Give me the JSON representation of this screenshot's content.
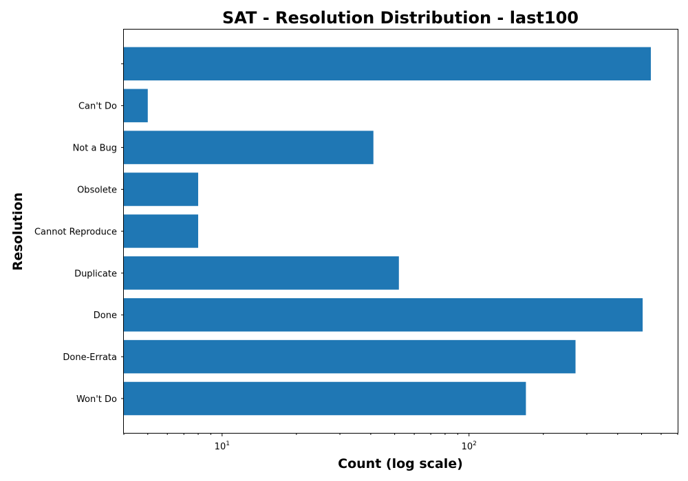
{
  "chart_data": {
    "type": "bar",
    "orientation": "horizontal",
    "title": "SAT - Resolution Distribution - last100",
    "xlabel": "Count (log scale)",
    "ylabel": "Resolution",
    "x_scale": "log",
    "xlim": [
      4,
      700
    ],
    "x_ticks": [
      {
        "value": 10,
        "base": "10",
        "exp": "1"
      },
      {
        "value": 100,
        "base": "10",
        "exp": "2"
      }
    ],
    "categories": [
      "Won't Do",
      "Done-Errata",
      "Done",
      "Duplicate",
      "Cannot Reproduce",
      "Obsolete",
      "Not a Bug",
      "Can't Do",
      ""
    ],
    "values": [
      170,
      270,
      505,
      52,
      8,
      8,
      41,
      5,
      545
    ],
    "bar_color": "#1f77b4",
    "grid": false,
    "legend": "none"
  }
}
